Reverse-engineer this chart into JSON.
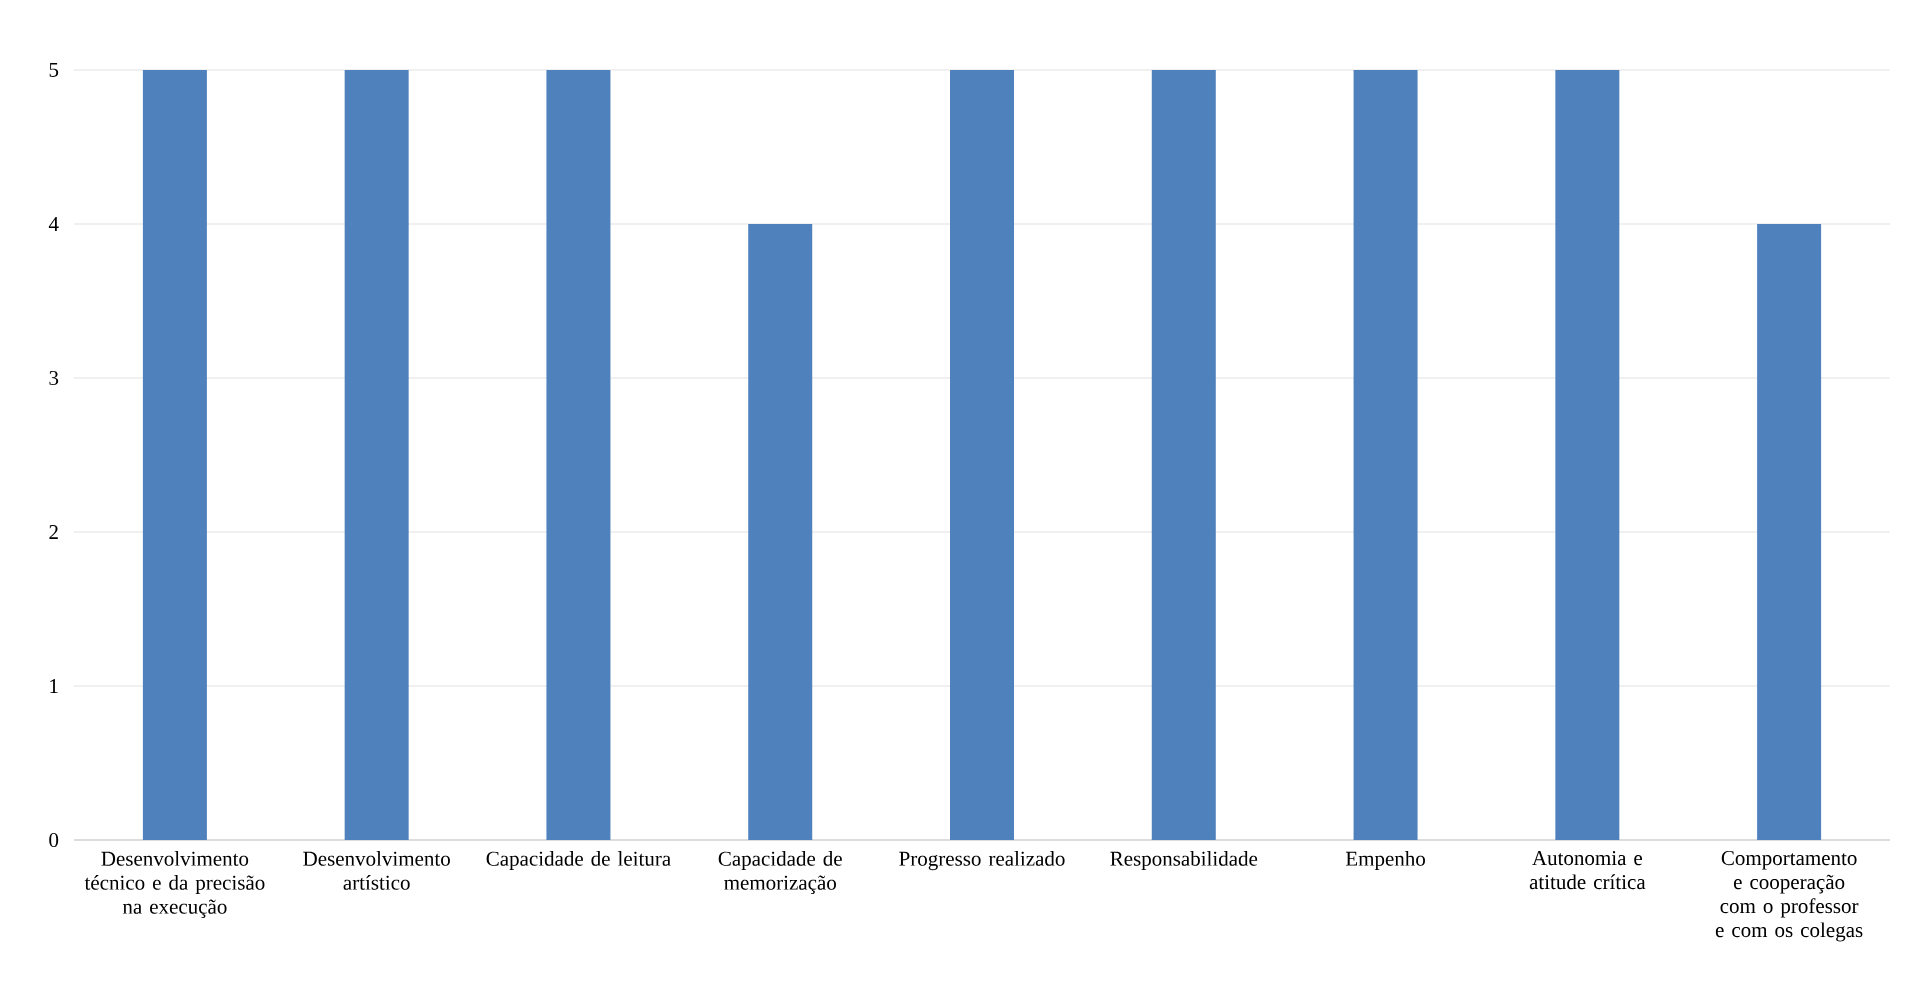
{
  "chart_data": {
    "type": "bar",
    "categories": [
      "Desenvolvimento técnico e da precisão na execução",
      "Desenvolvimento artístico",
      "Capacidade de leitura",
      "Capacidade de memorização",
      "Progresso realizado",
      "Responsabilidade",
      "Empenho",
      "Autonomia e atitude crítica",
      "Comportamento e cooperação com o professor e com os colegas"
    ],
    "values": [
      5,
      5,
      5,
      4,
      5,
      5,
      5,
      5,
      4
    ],
    "color": "#4f81bd",
    "ylim": [
      0,
      5
    ],
    "yticks": [
      0,
      1,
      2,
      3,
      4,
      5
    ],
    "grid": "y"
  }
}
